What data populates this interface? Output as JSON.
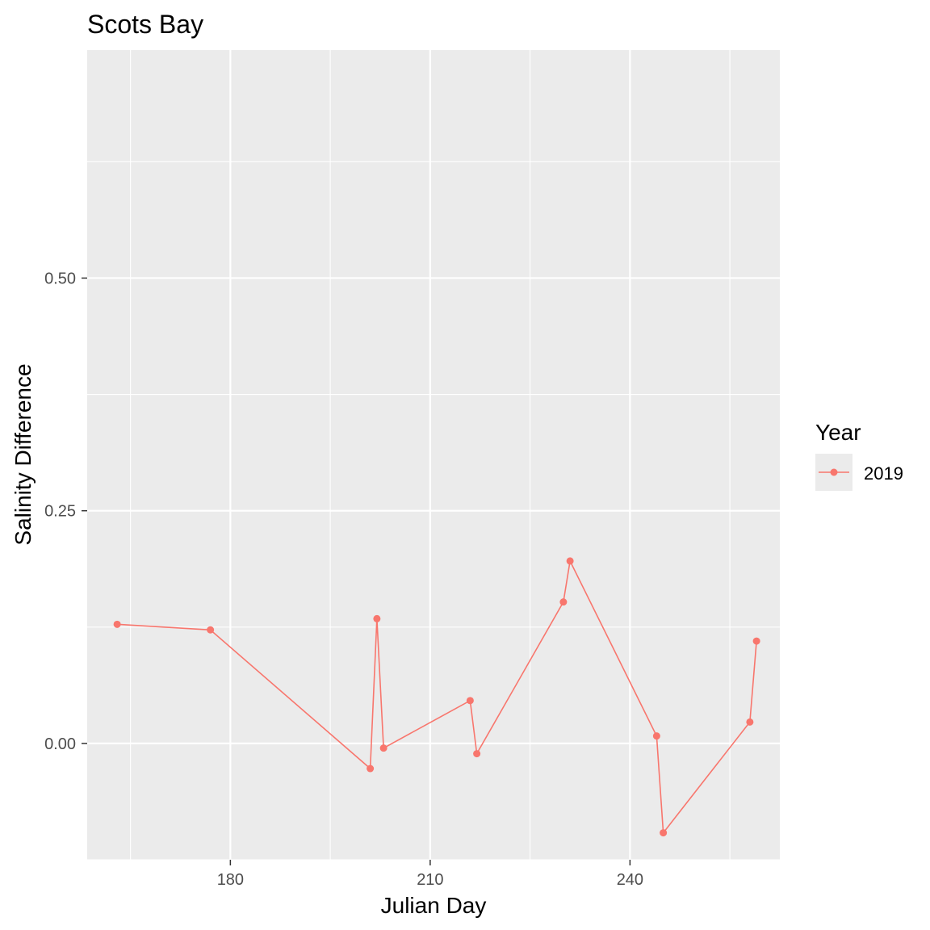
{
  "chart_data": {
    "type": "line",
    "title": "Scots Bay",
    "xlabel": "Julian Day",
    "ylabel": "Salinity Difference",
    "xlim": [
      158.5,
      262.5
    ],
    "ylim": [
      -0.125,
      0.745
    ],
    "x_ticks": [
      180,
      210,
      240
    ],
    "x_tick_labels": [
      "180",
      "210",
      "240"
    ],
    "y_ticks": [
      0.0,
      0.25,
      0.5
    ],
    "y_tick_labels": [
      "0.00",
      "0.25",
      "0.50"
    ],
    "grid": true,
    "legend": {
      "title": "Year",
      "placement": "right",
      "entries": [
        "2019"
      ]
    },
    "colors": {
      "series": "#F8766D",
      "panel": "#EBEBEB",
      "grid": "#FFFFFF"
    },
    "series": [
      {
        "name": "2019",
        "x": [
          163,
          177,
          201,
          202,
          203,
          216,
          217,
          230,
          231,
          244,
          245,
          258,
          259
        ],
        "y": [
          0.128,
          0.122,
          -0.027,
          0.134,
          -0.005,
          0.046,
          -0.011,
          0.152,
          0.196,
          0.008,
          -0.096,
          0.023,
          0.11
        ]
      }
    ]
  }
}
